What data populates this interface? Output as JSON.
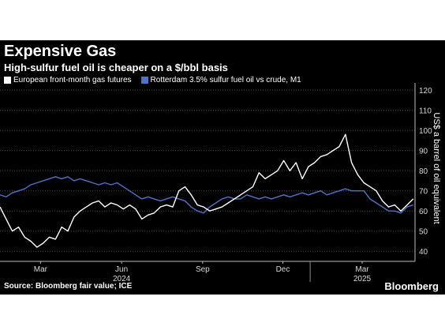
{
  "header": {
    "title": "Expensive Gas",
    "subtitle": "High-sulfur fuel oil is cheaper on a $/bbl basis"
  },
  "footer": {
    "source": "Source: Bloomberg fair value; ICE",
    "brand": "Bloomberg"
  },
  "colors": {
    "background": "#000000",
    "gas": "#ffffff",
    "fuel_oil": "#4f72c4",
    "grid": "#4a4a4a"
  },
  "chart_data": {
    "type": "line",
    "ylabel": "US$ a barrel of oil equivalent",
    "ylim": [
      35,
      122
    ],
    "yticks": [
      40,
      50,
      60,
      70,
      80,
      90,
      100,
      110,
      120
    ],
    "y_axis_position": "right",
    "grid": "horizontal dotted",
    "legend_position": "top-left",
    "xlim": [
      "2024-01-15",
      "2025-04-30"
    ],
    "x_ticks": [
      {
        "label": "Mar",
        "date": "2024-03-01"
      },
      {
        "label": "Jun",
        "date": "2024-06-01"
      },
      {
        "label": "Sep",
        "date": "2024-09-01"
      },
      {
        "label": "Dec",
        "date": "2024-12-01"
      },
      {
        "label": "Mar",
        "date": "2025-03-01"
      }
    ],
    "year_labels": [
      {
        "label": "2024",
        "date": "2024-06-01"
      },
      {
        "label": "2025",
        "date": "2025-03-01"
      }
    ],
    "series": [
      {
        "name": "European front-month gas futures",
        "color": "#ffffff",
        "x": [
          "2024-01-15",
          "2024-01-22",
          "2024-01-29",
          "2024-02-05",
          "2024-02-12",
          "2024-02-19",
          "2024-02-26",
          "2024-03-04",
          "2024-03-11",
          "2024-03-18",
          "2024-03-25",
          "2024-04-01",
          "2024-04-08",
          "2024-04-15",
          "2024-04-22",
          "2024-04-29",
          "2024-05-06",
          "2024-05-13",
          "2024-05-20",
          "2024-05-27",
          "2024-06-03",
          "2024-06-10",
          "2024-06-17",
          "2024-06-24",
          "2024-07-01",
          "2024-07-08",
          "2024-07-15",
          "2024-07-22",
          "2024-07-29",
          "2024-08-05",
          "2024-08-12",
          "2024-08-19",
          "2024-08-26",
          "2024-09-02",
          "2024-09-09",
          "2024-09-16",
          "2024-09-23",
          "2024-09-30",
          "2024-10-07",
          "2024-10-14",
          "2024-10-21",
          "2024-10-28",
          "2024-11-04",
          "2024-11-11",
          "2024-11-18",
          "2024-11-25",
          "2024-12-02",
          "2024-12-09",
          "2024-12-16",
          "2024-12-23",
          "2024-12-30",
          "2025-01-06",
          "2025-01-13",
          "2025-01-20",
          "2025-01-27",
          "2025-02-03",
          "2025-02-10",
          "2025-02-17",
          "2025-02-24",
          "2025-03-03",
          "2025-03-10",
          "2025-03-17",
          "2025-03-24",
          "2025-03-31",
          "2025-04-07",
          "2025-04-14",
          "2025-04-21",
          "2025-04-28"
        ],
        "values": [
          62,
          56,
          50,
          52,
          47,
          45,
          42,
          44,
          47,
          46,
          52,
          50,
          57,
          60,
          62,
          64,
          65,
          62,
          64,
          63,
          61,
          63,
          61,
          56,
          58,
          59,
          62,
          63,
          62,
          70,
          72,
          68,
          63,
          62,
          60,
          61,
          62,
          64,
          66,
          68,
          70,
          72,
          79,
          76,
          78,
          80,
          85,
          80,
          84,
          76,
          82,
          84,
          87,
          88,
          90,
          92,
          98,
          84,
          78,
          74,
          72,
          70,
          65,
          62,
          63,
          60,
          63,
          66
        ]
      },
      {
        "name": "Rotterdam 3.5% sulfur fuel oil vs crude, M1",
        "color": "#4f72c4",
        "x": [
          "2024-01-15",
          "2024-01-22",
          "2024-01-29",
          "2024-02-05",
          "2024-02-12",
          "2024-02-19",
          "2024-02-26",
          "2024-03-04",
          "2024-03-11",
          "2024-03-18",
          "2024-03-25",
          "2024-04-01",
          "2024-04-08",
          "2024-04-15",
          "2024-04-22",
          "2024-04-29",
          "2024-05-06",
          "2024-05-13",
          "2024-05-20",
          "2024-05-27",
          "2024-06-03",
          "2024-06-10",
          "2024-06-17",
          "2024-06-24",
          "2024-07-01",
          "2024-07-08",
          "2024-07-15",
          "2024-07-22",
          "2024-07-29",
          "2024-08-05",
          "2024-08-12",
          "2024-08-19",
          "2024-08-26",
          "2024-09-02",
          "2024-09-09",
          "2024-09-16",
          "2024-09-23",
          "2024-09-30",
          "2024-10-07",
          "2024-10-14",
          "2024-10-21",
          "2024-10-28",
          "2024-11-04",
          "2024-11-11",
          "2024-11-18",
          "2024-11-25",
          "2024-12-02",
          "2024-12-09",
          "2024-12-16",
          "2024-12-23",
          "2024-12-30",
          "2025-01-06",
          "2025-01-13",
          "2025-01-20",
          "2025-01-27",
          "2025-02-03",
          "2025-02-10",
          "2025-02-17",
          "2025-02-24",
          "2025-03-03",
          "2025-03-10",
          "2025-03-17",
          "2025-03-24",
          "2025-03-31",
          "2025-04-07",
          "2025-04-14",
          "2025-04-21",
          "2025-04-28"
        ],
        "values": [
          68,
          67,
          69,
          70,
          71,
          73,
          74,
          75,
          76,
          77,
          76,
          77,
          75,
          76,
          75,
          74,
          73,
          74,
          73,
          74,
          72,
          70,
          68,
          66,
          67,
          66,
          65,
          66,
          67,
          66,
          65,
          62,
          60,
          59,
          62,
          64,
          66,
          67,
          66,
          66,
          68,
          67,
          66,
          67,
          66,
          67,
          68,
          67,
          68,
          69,
          68,
          69,
          70,
          68,
          69,
          70,
          71,
          70,
          70,
          70,
          66,
          64,
          62,
          60,
          60,
          59,
          62,
          63
        ]
      }
    ]
  }
}
